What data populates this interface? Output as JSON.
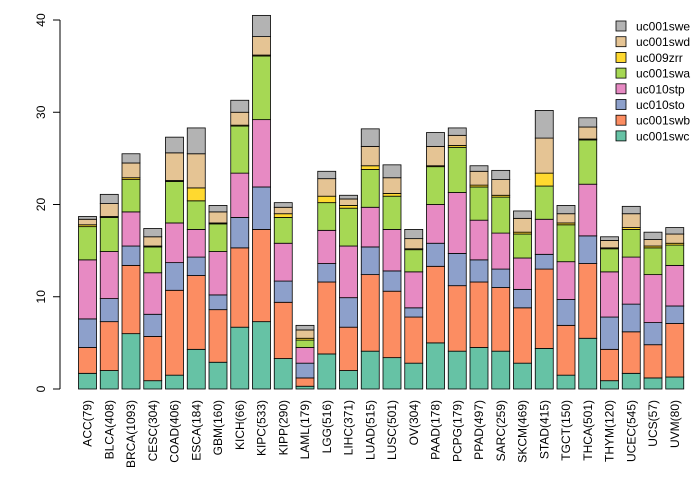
{
  "chart_data": {
    "type": "bar",
    "stacked": true,
    "title": "",
    "xlabel": "",
    "ylabel": "",
    "ylim": [
      0,
      40
    ],
    "yticks": [
      0,
      10,
      20,
      30,
      40
    ],
    "legend_position": "top-right",
    "categories": [
      "ACC(79)",
      "BLCA(408)",
      "BRCA(1093)",
      "CESC(304)",
      "COAD(406)",
      "ESCA(184)",
      "GBM(160)",
      "KICH(66)",
      "KIPC(533)",
      "KIPP(290)",
      "LAML(179)",
      "LGG(516)",
      "LIHC(371)",
      "LUAD(515)",
      "LUSC(501)",
      "OV(304)",
      "PAAD(178)",
      "PCPG(179)",
      "PPAD(497)",
      "SARC(259)",
      "SKCM(469)",
      "STAD(415)",
      "TGCT(150)",
      "THCA(501)",
      "THYM(120)",
      "UCEC(545)",
      "UCS(57)",
      "UVM(80)"
    ],
    "series": [
      {
        "name": "uc001swc",
        "color": "#66C2A5",
        "values": [
          1.7,
          2.0,
          6.0,
          0.9,
          1.5,
          4.3,
          2.9,
          6.7,
          7.3,
          3.3,
          0.3,
          3.8,
          2.0,
          4.1,
          3.4,
          2.8,
          5.0,
          4.1,
          4.5,
          4.1,
          2.8,
          4.4,
          1.5,
          5.5,
          0.9,
          1.7,
          1.2,
          1.3
        ]
      },
      {
        "name": "uc001swb",
        "color": "#FC8D62",
        "values": [
          2.8,
          5.3,
          7.4,
          4.8,
          9.2,
          8.0,
          5.7,
          8.6,
          10.0,
          6.1,
          0.9,
          7.8,
          4.7,
          8.3,
          7.2,
          5.0,
          8.3,
          7.1,
          7.1,
          6.9,
          6.0,
          8.6,
          5.4,
          8.1,
          3.4,
          4.5,
          3.6,
          5.8
        ]
      },
      {
        "name": "uc010sto",
        "color": "#8DA0CB",
        "values": [
          3.1,
          2.5,
          2.1,
          2.4,
          3.0,
          2.0,
          1.6,
          3.3,
          4.6,
          2.3,
          1.6,
          2.0,
          3.2,
          3.0,
          2.2,
          1.0,
          2.5,
          3.5,
          2.4,
          2.0,
          2.0,
          1.6,
          2.8,
          3.0,
          3.5,
          3.0,
          2.4,
          1.9
        ]
      },
      {
        "name": "uc010stp",
        "color": "#E78AC3",
        "values": [
          6.4,
          5.1,
          3.7,
          4.5,
          4.3,
          3.0,
          4.7,
          4.8,
          7.3,
          4.1,
          1.7,
          3.6,
          5.6,
          4.3,
          4.5,
          3.9,
          4.2,
          6.6,
          4.3,
          3.9,
          3.4,
          3.8,
          4.1,
          5.6,
          4.9,
          5.1,
          5.2,
          4.4
        ]
      },
      {
        "name": "uc001swa",
        "color": "#A6D854",
        "values": [
          3.6,
          3.7,
          3.5,
          2.8,
          4.5,
          3.1,
          3.0,
          5.1,
          6.9,
          2.8,
          0.8,
          3.0,
          4.1,
          4.1,
          3.6,
          2.4,
          4.1,
          4.9,
          3.6,
          3.9,
          2.6,
          3.6,
          4.0,
          4.8,
          2.5,
          3.0,
          2.9,
          2.2
        ]
      },
      {
        "name": "uc009zrr",
        "color": "#FFD92F",
        "values": [
          0.2,
          0.1,
          0.2,
          0.1,
          0.1,
          1.4,
          0.1,
          0.1,
          0.1,
          0.4,
          0.2,
          0.7,
          0.3,
          0.4,
          0.3,
          0.1,
          0.1,
          0.2,
          0.2,
          0.2,
          0.2,
          1.4,
          0.2,
          0.1,
          0.1,
          0.2,
          0.2,
          0.2
        ]
      },
      {
        "name": "uc001swd",
        "color": "#E5C494",
        "values": [
          0.6,
          1.4,
          1.6,
          1.0,
          3.0,
          3.7,
          1.2,
          1.4,
          2.0,
          0.7,
          0.9,
          1.9,
          0.7,
          2.1,
          1.7,
          1.1,
          2.1,
          1.1,
          1.5,
          1.7,
          1.5,
          3.8,
          1.0,
          1.3,
          0.8,
          1.5,
          0.7,
          1.0
        ]
      },
      {
        "name": "uc001swe",
        "color": "#B3B3B3",
        "values": [
          0.3,
          1.0,
          1.0,
          0.9,
          1.7,
          2.8,
          0.7,
          1.3,
          2.3,
          0.5,
          0.5,
          0.8,
          0.4,
          1.9,
          1.4,
          1.0,
          1.5,
          0.8,
          0.6,
          1.0,
          0.8,
          3.0,
          0.9,
          1.0,
          0.4,
          0.8,
          0.8,
          0.7
        ]
      }
    ]
  }
}
